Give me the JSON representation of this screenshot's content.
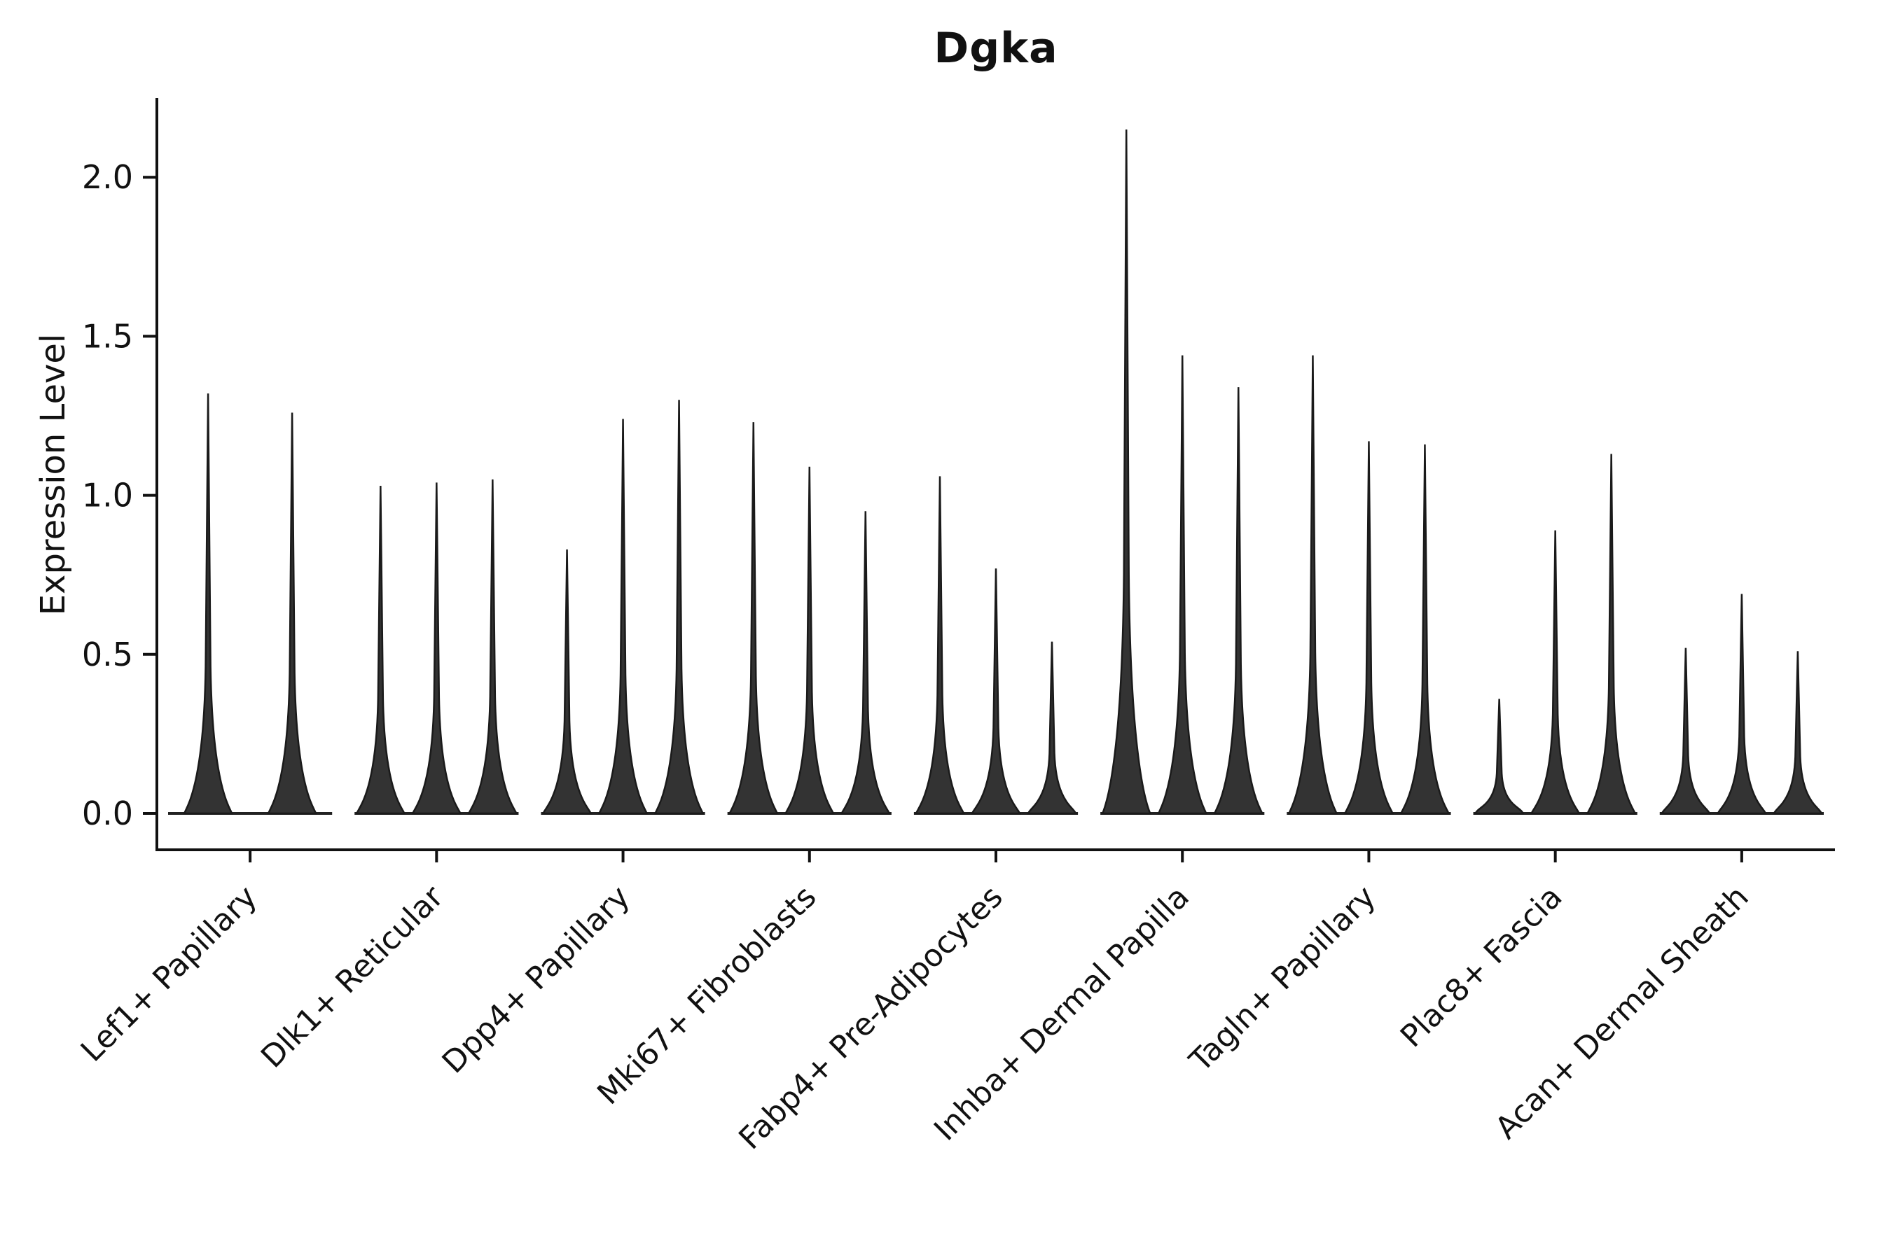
{
  "figure": {
    "background": "#ffffff"
  },
  "chart_data": {
    "type": "violin",
    "title": "Dgka",
    "ylabel": "Expression Level",
    "xlabel": "",
    "ylim": [
      -0.11,
      2.24
    ],
    "yticks": [
      0.0,
      0.5,
      1.0,
      1.5,
      2.0
    ],
    "grid": false,
    "legend": "none",
    "axis_color": "#111111",
    "violin_fill": "#333333",
    "violin_stroke": "#1a1a1a",
    "baseline_color": "#222222",
    "categories": [
      "Lef1+ Papillary",
      "Dlk1+ Reticular",
      "Dpp4+ Papillary",
      "Mki67+ Fibroblasts",
      "Fabp4+ Pre-Adipocytes",
      "Inhba+ Dermal Papilla",
      "Tagln+ Papillary",
      "Plac8+ Fascia",
      "Acan+ Dermal Sheath"
    ],
    "violin_heights": [
      [
        1.32,
        1.26
      ],
      [
        1.03,
        1.04,
        1.05
      ],
      [
        0.83,
        1.24,
        1.3
      ],
      [
        1.23,
        1.09,
        0.95
      ],
      [
        1.06,
        0.77,
        0.54
      ],
      [
        2.15,
        1.44,
        1.34
      ],
      [
        1.44,
        1.17,
        1.16
      ],
      [
        0.36,
        0.89,
        1.13
      ],
      [
        0.52,
        0.69,
        0.51
      ]
    ]
  }
}
